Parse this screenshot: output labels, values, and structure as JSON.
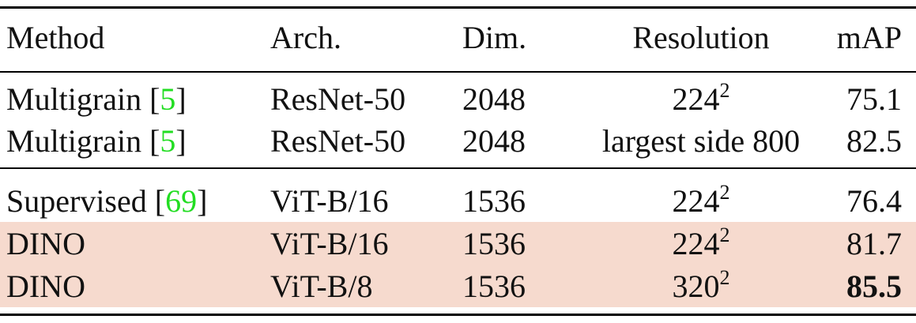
{
  "headers": {
    "method": "Method",
    "arch": "Arch.",
    "dim": "Dim.",
    "resolution": "Resolution",
    "map": "mAP"
  },
  "rows": [
    {
      "method": "Multigrain",
      "cite": "5",
      "arch": "ResNet-50",
      "dim": "2048",
      "res_base": "224",
      "res_exp": "2",
      "res_text": "",
      "map": "75.1",
      "highlight": false,
      "bold_map": false
    },
    {
      "method": "Multigrain",
      "cite": "5",
      "arch": "ResNet-50",
      "dim": "2048",
      "res_base": "",
      "res_exp": "",
      "res_text": "largest side 800",
      "map": "82.5",
      "highlight": false,
      "bold_map": false
    },
    {
      "method": "Supervised",
      "cite": "69",
      "arch": "ViT-B/16",
      "dim": "1536",
      "res_base": "224",
      "res_exp": "2",
      "res_text": "",
      "map": "76.4",
      "highlight": false,
      "bold_map": false
    },
    {
      "method": "DINO",
      "cite": "",
      "arch": "ViT-B/16",
      "dim": "1536",
      "res_base": "224",
      "res_exp": "2",
      "res_text": "",
      "map": "81.7",
      "highlight": true,
      "bold_map": false
    },
    {
      "method": "DINO",
      "cite": "",
      "arch": "ViT-B/8",
      "dim": "1536",
      "res_base": "320",
      "res_exp": "2",
      "res_text": "",
      "map": "85.5",
      "highlight": true,
      "bold_map": true
    }
  ],
  "colors": {
    "highlight": "#f6dace",
    "citation": "#22dd22"
  }
}
